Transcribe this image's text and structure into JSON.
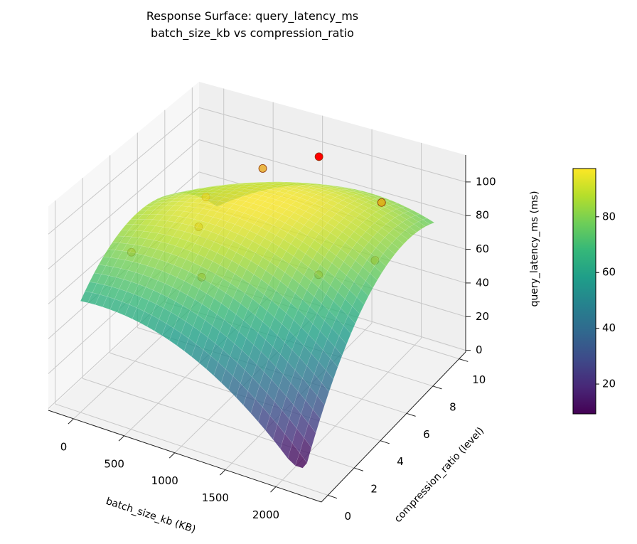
{
  "chart_data": {
    "type": "surface3d",
    "title": "Response Surface: query_latency_ms",
    "subtitle": "batch_size_kb vs compression_ratio",
    "xlabel": "batch_size_kb (KB)",
    "ylabel": "compression_ratio (level)",
    "zlabel": "query_latency_ms (ms)",
    "xlim": [
      -250,
      2450
    ],
    "ylim": [
      -0.5,
      10.5
    ],
    "zlim": [
      -1,
      116
    ],
    "xticks": [
      0,
      500,
      1000,
      1500,
      2000
    ],
    "yticks": [
      0,
      2,
      4,
      6,
      8,
      10
    ],
    "zticks": [
      0,
      20,
      40,
      60,
      80,
      100
    ],
    "surface": {
      "x_range": [
        0,
        2200
      ],
      "y_range": [
        0,
        10
      ],
      "model": "z = 97 - 15*u^2 - 30*v^2 + 20*u*v, u=(x-1000)/1000, v=(y-6)/5",
      "colormap": "viridis",
      "alpha": 0.8
    },
    "points": [
      {
        "x": 100,
        "y": 3,
        "z": 72
      },
      {
        "x": 300,
        "y": 7,
        "z": 80
      },
      {
        "x": 600,
        "y": 9,
        "z": 88
      },
      {
        "x": 1100,
        "y": 9.5,
        "z": 100,
        "highlight": true
      },
      {
        "x": 1800,
        "y": 9,
        "z": 88
      },
      {
        "x": 2000,
        "y": 7,
        "z": 72
      },
      {
        "x": 1700,
        "y": 5,
        "z": 73
      },
      {
        "x": 800,
        "y": 3,
        "z": 70
      },
      {
        "x": 500,
        "y": 5,
        "z": 80
      }
    ],
    "point_color": "#e8a000",
    "highlight_color": "#ff0000",
    "grid": true,
    "colorbar": {
      "min": 9.3,
      "max": 97.3,
      "ticks": [
        20,
        40,
        60,
        80
      ]
    }
  }
}
